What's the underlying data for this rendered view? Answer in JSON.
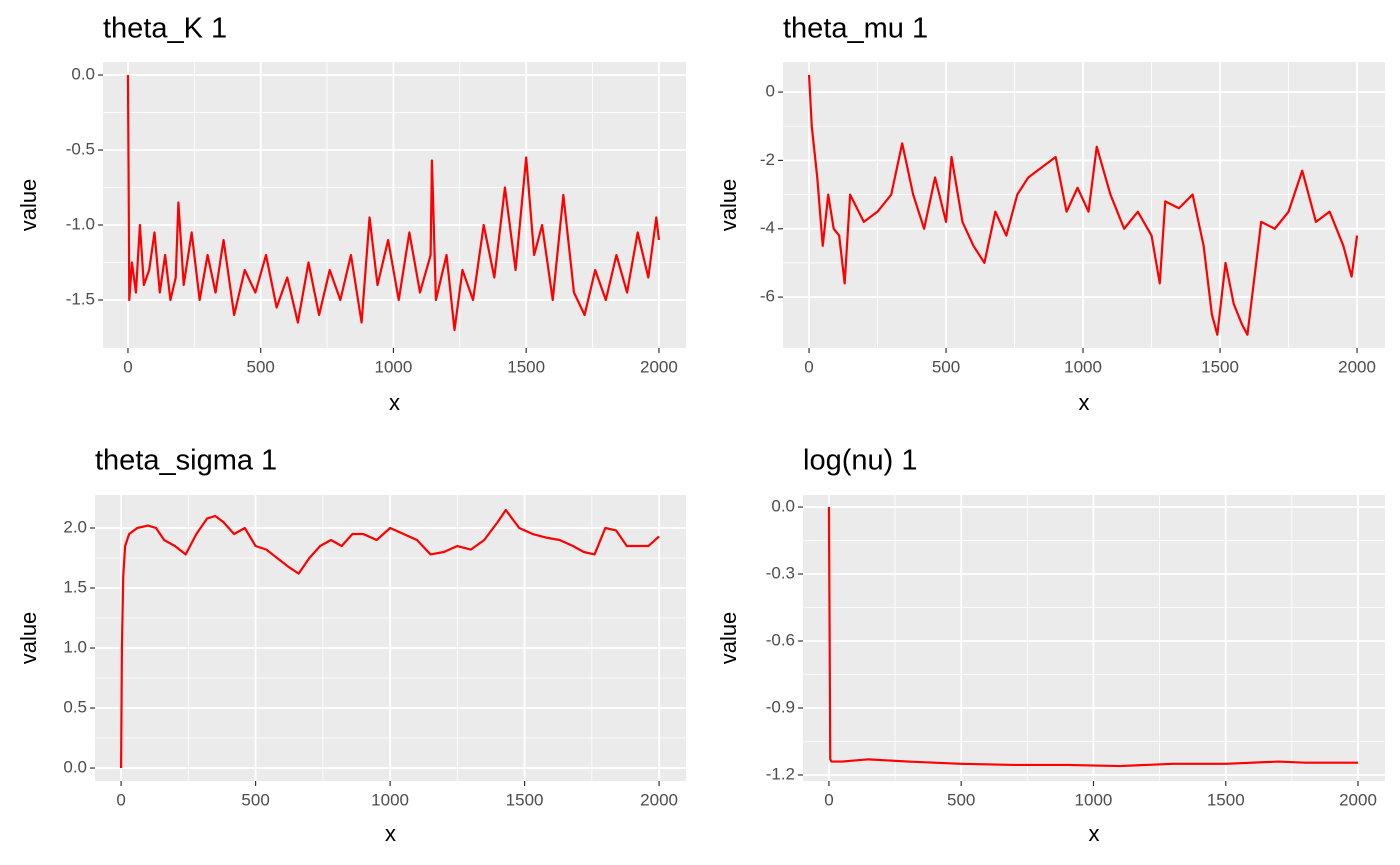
{
  "chart_data": [
    {
      "type": "line",
      "title": "theta_K 1",
      "x_label": "x",
      "y_label": "value",
      "color": "#ff0000",
      "xlim": [
        -94,
        2102
      ],
      "ylim": [
        -1.82,
        0.087
      ],
      "xticks": [
        0,
        500,
        1000,
        1500,
        2000
      ],
      "yticks": [
        -1.5,
        {
          "value": -1,
          "label": "-1.0"
        },
        -0.5,
        {
          "value": 0,
          "label": "0.0"
        }
      ],
      "x": [
        0,
        5,
        15,
        30,
        45,
        60,
        80,
        100,
        120,
        140,
        160,
        180,
        190,
        210,
        240,
        270,
        300,
        330,
        360,
        400,
        440,
        480,
        520,
        560,
        600,
        640,
        680,
        720,
        760,
        800,
        840,
        880,
        910,
        940,
        980,
        1020,
        1060,
        1100,
        1140,
        1145,
        1160,
        1200,
        1230,
        1260,
        1300,
        1340,
        1380,
        1420,
        1460,
        1500,
        1530,
        1560,
        1600,
        1640,
        1680,
        1720,
        1760,
        1800,
        1840,
        1880,
        1920,
        1960,
        1990,
        2000
      ],
      "values": [
        0,
        -1.5,
        -1.25,
        -1.45,
        -1.0,
        -1.4,
        -1.3,
        -1.05,
        -1.45,
        -1.2,
        -1.5,
        -1.35,
        -0.85,
        -1.4,
        -1.05,
        -1.5,
        -1.2,
        -1.45,
        -1.1,
        -1.6,
        -1.3,
        -1.45,
        -1.2,
        -1.55,
        -1.35,
        -1.65,
        -1.25,
        -1.6,
        -1.3,
        -1.5,
        -1.2,
        -1.65,
        -0.95,
        -1.4,
        -1.1,
        -1.5,
        -1.05,
        -1.45,
        -1.2,
        -0.57,
        -1.5,
        -1.2,
        -1.7,
        -1.3,
        -1.5,
        -1.0,
        -1.35,
        -0.75,
        -1.3,
        -0.55,
        -1.2,
        -1.0,
        -1.5,
        -0.8,
        -1.45,
        -1.6,
        -1.3,
        -1.5,
        -1.2,
        -1.45,
        -1.05,
        -1.35,
        -0.95,
        -1.1
      ]
    },
    {
      "type": "line",
      "title": "theta_mu 1",
      "x_label": "x",
      "y_label": "value",
      "color": "#ff0000",
      "xlim": [
        -95,
        2102
      ],
      "ylim": [
        -7.49,
        0.88
      ],
      "xticks": [
        0,
        500,
        1000,
        1500,
        2000
      ],
      "yticks": [
        -6,
        -4,
        -2,
        0
      ],
      "x": [
        0,
        10,
        30,
        50,
        70,
        90,
        110,
        130,
        150,
        200,
        250,
        300,
        340,
        380,
        420,
        460,
        500,
        520,
        560,
        600,
        640,
        680,
        720,
        760,
        800,
        850,
        900,
        940,
        980,
        1020,
        1050,
        1100,
        1150,
        1200,
        1250,
        1280,
        1300,
        1350,
        1400,
        1440,
        1470,
        1490,
        1520,
        1550,
        1580,
        1600,
        1650,
        1700,
        1750,
        1800,
        1850,
        1900,
        1950,
        1980,
        2000
      ],
      "values": [
        0.5,
        -1.0,
        -2.5,
        -4.5,
        -3.0,
        -4.0,
        -4.2,
        -5.6,
        -3.0,
        -3.8,
        -3.5,
        -3.0,
        -1.5,
        -3.0,
        -4.0,
        -2.5,
        -3.8,
        -1.9,
        -3.8,
        -4.5,
        -5.0,
        -3.5,
        -4.2,
        -3.0,
        -2.5,
        -2.2,
        -1.9,
        -3.5,
        -2.8,
        -3.5,
        -1.6,
        -3.0,
        -4.0,
        -3.5,
        -4.2,
        -5.6,
        -3.2,
        -3.4,
        -3.0,
        -4.5,
        -6.5,
        -7.1,
        -5.0,
        -6.2,
        -6.8,
        -7.1,
        -3.8,
        -4.0,
        -3.5,
        -2.3,
        -3.8,
        -3.5,
        -4.5,
        -5.4,
        -4.2
      ]
    },
    {
      "type": "line",
      "title": "theta_sigma 1",
      "x_label": "x",
      "y_label": "value",
      "color": "#ff0000",
      "xlim": [
        -97,
        2100
      ],
      "ylim": [
        -0.108,
        2.275
      ],
      "xticks": [
        0,
        500,
        1000,
        1500,
        2000
      ],
      "yticks": [
        {
          "value": 0,
          "label": "0.0"
        },
        0.5,
        {
          "value": 1,
          "label": "1.0"
        },
        1.5,
        {
          "value": 2,
          "label": "2.0"
        }
      ],
      "x": [
        0,
        3,
        8,
        15,
        30,
        60,
        100,
        130,
        160,
        200,
        240,
        280,
        320,
        350,
        380,
        420,
        460,
        500,
        540,
        580,
        620,
        660,
        700,
        740,
        780,
        820,
        860,
        900,
        950,
        1000,
        1050,
        1100,
        1150,
        1200,
        1250,
        1300,
        1350,
        1400,
        1430,
        1480,
        1530,
        1580,
        1630,
        1680,
        1720,
        1760,
        1800,
        1840,
        1880,
        1920,
        1960,
        2000
      ],
      "values": [
        0,
        1.0,
        1.6,
        1.85,
        1.95,
        2.0,
        2.02,
        2.0,
        1.9,
        1.85,
        1.78,
        1.95,
        2.08,
        2.1,
        2.05,
        1.95,
        2.0,
        1.85,
        1.82,
        1.75,
        1.68,
        1.62,
        1.75,
        1.85,
        1.9,
        1.85,
        1.95,
        1.95,
        1.9,
        2.0,
        1.95,
        1.9,
        1.78,
        1.8,
        1.85,
        1.82,
        1.9,
        2.05,
        2.15,
        2.0,
        1.95,
        1.92,
        1.9,
        1.85,
        1.8,
        1.78,
        2.0,
        1.98,
        1.85,
        1.85,
        1.85,
        1.93
      ]
    },
    {
      "type": "line",
      "title": "log(nu) 1",
      "x_label": "x",
      "y_label": "value",
      "color": "#ff0000",
      "xlim": [
        -98,
        2102
      ],
      "ylim": [
        -1.227,
        0.054
      ],
      "xticks": [
        0,
        500,
        1000,
        1500,
        2000
      ],
      "yticks": [
        -1.2,
        -0.9,
        -0.6,
        -0.3,
        {
          "value": 0,
          "label": "0.0"
        }
      ],
      "x": [
        0,
        5,
        10,
        50,
        150,
        300,
        500,
        700,
        900,
        1100,
        1200,
        1300,
        1500,
        1700,
        1800,
        2000
      ],
      "values": [
        0,
        -1.13,
        -1.14,
        -1.14,
        -1.13,
        -1.14,
        -1.15,
        -1.155,
        -1.155,
        -1.16,
        -1.155,
        -1.15,
        -1.15,
        -1.14,
        -1.145,
        -1.145
      ]
    }
  ]
}
